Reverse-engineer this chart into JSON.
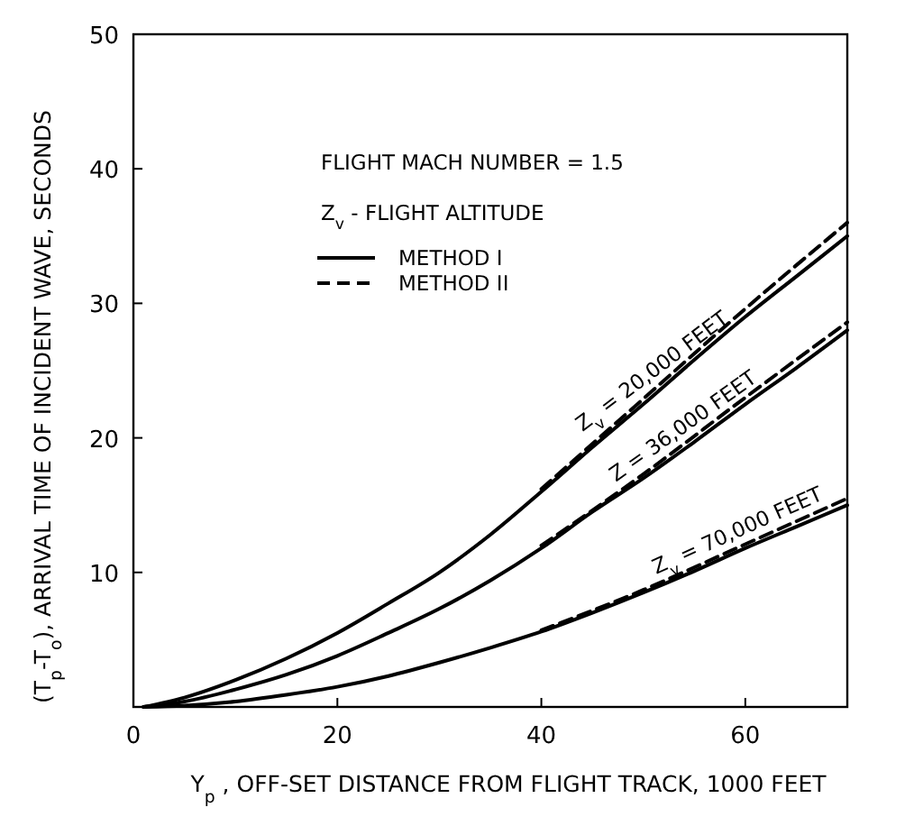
{
  "chart_data": {
    "type": "line",
    "xlabel": "Y$_{p}$ , OFF-SET DISTANCE FROM FLIGHT TRACK, 1000 FEET",
    "ylabel": "(T$_{p}$-T$_{o}$), ARRIVAL TIME OF INCIDENT WAVE, SECONDS",
    "xlim": [
      0,
      70
    ],
    "xticks": [
      0,
      20,
      40,
      60
    ],
    "ylim": [
      0,
      50
    ],
    "yticks": [
      10,
      20,
      30,
      40,
      50
    ],
    "grid": false,
    "legend": "top left",
    "marker": "none",
    "series": [
      {
        "name": "METHOD I",
        "color": "#000000",
        "line_style": "solid",
        "x": [
          1,
          5,
          10,
          15,
          20,
          25,
          30,
          35,
          40,
          45,
          50,
          55,
          60,
          65,
          70
        ],
        "values": [
          0,
          0.7,
          2,
          3.6,
          5.5,
          7.7,
          10,
          12.8,
          16,
          19.3,
          22.5,
          25.8,
          29,
          32,
          35
        ]
      },
      {
        "color": "#000000",
        "line_style": "solid",
        "x": [
          1,
          5,
          10,
          15,
          20,
          25,
          30,
          35,
          40,
          45,
          50,
          55,
          60,
          65,
          70
        ],
        "values": [
          0,
          0.4,
          1.3,
          2.4,
          3.8,
          5.5,
          7.3,
          9.4,
          11.8,
          14.5,
          17,
          19.7,
          22.5,
          25.2,
          28
        ]
      },
      {
        "color": "#000000",
        "line_style": "solid",
        "x": [
          1,
          5,
          10,
          15,
          20,
          25,
          30,
          35,
          40,
          45,
          50,
          55,
          60,
          65,
          70
        ],
        "values": [
          0,
          0.1,
          0.4,
          0.9,
          1.5,
          2.3,
          3.3,
          4.4,
          5.6,
          7,
          8.5,
          10.1,
          11.8,
          13.4,
          15
        ]
      },
      {
        "name": "METHOD II",
        "color": "#000000",
        "line_style": "dashed",
        "x": [
          40,
          50,
          60,
          70
        ],
        "values": [
          16.2,
          22.9,
          29.6,
          36
        ]
      },
      {
        "color": "#000000",
        "line_style": "dashed",
        "x": [
          40,
          50,
          60,
          70
        ],
        "values": [
          12,
          17.3,
          23,
          28.6
        ]
      },
      {
        "color": "#000000",
        "line_style": "dashed",
        "x": [
          40,
          50,
          60,
          70
        ],
        "values": [
          5.7,
          8.7,
          12.1,
          15.5
        ]
      }
    ],
    "annotations": [
      "FLIGHT MACH NUMBER = 1.5",
      "Z$_{v}$ - FLIGHT ALTITUDE",
      {
        "text": "Z$_{v}$ = 20,000 FEET",
        "x": 52,
        "y": 23.8
      },
      {
        "text": "Z = 36,000 FEET",
        "x": 55,
        "y": 19.7
      },
      {
        "text": "Z$_{v}$ = 70,000 FEET",
        "x": 60,
        "y": 11.8
      }
    ]
  }
}
